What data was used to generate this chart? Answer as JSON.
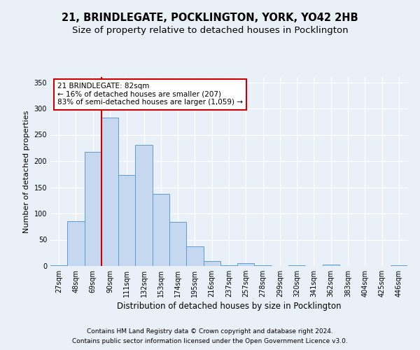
{
  "title1": "21, BRINDLEGATE, POCKLINGTON, YORK, YO42 2HB",
  "title2": "Size of property relative to detached houses in Pocklington",
  "xlabel": "Distribution of detached houses by size in Pocklington",
  "ylabel": "Number of detached properties",
  "categories": [
    "27sqm",
    "48sqm",
    "69sqm",
    "90sqm",
    "111sqm",
    "132sqm",
    "153sqm",
    "174sqm",
    "195sqm",
    "216sqm",
    "237sqm",
    "257sqm",
    "278sqm",
    "299sqm",
    "320sqm",
    "341sqm",
    "362sqm",
    "383sqm",
    "404sqm",
    "425sqm",
    "446sqm"
  ],
  "values": [
    2,
    86,
    218,
    283,
    174,
    231,
    138,
    84,
    38,
    10,
    2,
    5,
    2,
    0,
    2,
    0,
    3,
    0,
    0,
    0,
    2
  ],
  "bar_color": "#c5d8f0",
  "bar_edge_color": "#5b9bd5",
  "vline_x": 2.5,
  "vline_color": "#cc0000",
  "annotation_text": "21 BRINDLEGATE: 82sqm\n← 16% of detached houses are smaller (207)\n83% of semi-detached houses are larger (1,059) →",
  "annotation_box_color": "#ffffff",
  "annotation_box_edge": "#cc0000",
  "ylim": [
    0,
    360
  ],
  "yticks": [
    0,
    50,
    100,
    150,
    200,
    250,
    300,
    350
  ],
  "footer1": "Contains HM Land Registry data © Crown copyright and database right 2024.",
  "footer2": "Contains public sector information licensed under the Open Government Licence v3.0.",
  "bg_color": "#eaf0f8",
  "plot_bg_color": "#eaf0f8",
  "grid_color": "#ffffff",
  "title1_fontsize": 10.5,
  "title2_fontsize": 9.5,
  "xlabel_fontsize": 8.5,
  "ylabel_fontsize": 8,
  "footer_fontsize": 6.5,
  "annotation_fontsize": 7.5,
  "tick_fontsize": 7
}
